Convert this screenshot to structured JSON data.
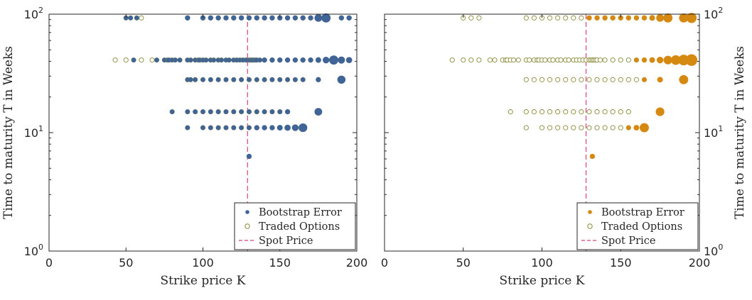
{
  "chart_data": [
    {
      "type": "scatter",
      "xlabel": "Strike price K",
      "ylabel": "Time to maturity T in Weeks",
      "xlim": [
        0,
        200
      ],
      "ylim": [
        1,
        100
      ],
      "yscale": "log",
      "xticks": [
        0,
        50,
        100,
        150,
        200
      ],
      "yticks": [
        {
          "v": 1,
          "b": "10",
          "e": "0"
        },
        {
          "v": 10,
          "b": "10",
          "e": "1"
        },
        {
          "v": 100,
          "b": "10",
          "e": "2"
        }
      ],
      "ylabel_side": "left",
      "grid": false,
      "legend_position": "bottom-right",
      "spot_price": 129,
      "legend": {
        "bootstrap": "Bootstrap Error",
        "traded": "Traded Options",
        "spot": "Spot Price"
      },
      "colors": {
        "bootstrap": "#3f6495",
        "traded": "#8a8a3a",
        "spot": "#d9417e"
      },
      "series": [
        {
          "T": 93,
          "K": [
            50,
            53,
            57,
            60,
            90,
            100,
            105,
            110,
            115,
            120,
            125,
            130,
            135,
            140,
            145,
            150,
            155,
            160,
            165,
            170,
            175,
            180,
            190,
            195
          ],
          "err": [
            0.3,
            0.3,
            0.3,
            0,
            0.35,
            0.35,
            0.35,
            0.35,
            0.35,
            0.35,
            0.35,
            0.35,
            0.35,
            0.35,
            0.35,
            0.35,
            0.35,
            0.35,
            0.35,
            0.35,
            0.6,
            0.75,
            0.35,
            0.35
          ]
        },
        {
          "T": 41,
          "K": [
            43,
            50,
            55,
            60,
            67,
            70,
            75,
            77,
            78,
            80,
            82,
            85,
            90,
            92,
            95,
            97,
            98,
            100,
            102,
            105,
            107,
            110,
            112,
            115,
            117,
            120,
            122,
            124,
            126,
            128,
            130,
            131,
            132,
            133,
            134,
            135,
            137,
            140,
            145,
            150,
            155,
            160,
            165,
            170,
            175,
            180,
            185,
            190,
            195
          ],
          "err": [
            0,
            0,
            0.3,
            0,
            0,
            0.3,
            0.3,
            0.3,
            0.3,
            0.3,
            0.3,
            0.3,
            0.3,
            0.3,
            0.3,
            0.3,
            0.3,
            0.3,
            0.3,
            0.3,
            0.3,
            0.3,
            0.3,
            0.3,
            0.3,
            0.3,
            0.3,
            0.3,
            0.3,
            0.3,
            0.3,
            0.3,
            0.3,
            0.3,
            0.3,
            0.3,
            0.3,
            0.35,
            0.35,
            0.35,
            0.35,
            0.35,
            0.35,
            0.35,
            0.4,
            0.5,
            0.75,
            0.55,
            0.45
          ]
        },
        {
          "T": 28,
          "K": [
            90,
            92,
            95,
            100,
            105,
            110,
            115,
            120,
            125,
            130,
            135,
            140,
            145,
            150,
            155,
            160,
            165,
            175,
            190
          ],
          "err": [
            0.3,
            0.3,
            0.3,
            0.3,
            0.3,
            0.3,
            0.3,
            0.3,
            0.3,
            0.3,
            0.3,
            0.3,
            0.3,
            0.3,
            0.3,
            0.3,
            0.3,
            0.35,
            0.65
          ]
        },
        {
          "T": 15,
          "K": [
            80,
            90,
            95,
            100,
            105,
            110,
            115,
            120,
            125,
            130,
            135,
            140,
            145,
            150,
            155,
            175
          ],
          "err": [
            0.3,
            0.3,
            0.3,
            0.3,
            0.3,
            0.3,
            0.3,
            0.3,
            0.3,
            0.3,
            0.3,
            0.3,
            0.3,
            0.3,
            0.35,
            0.6
          ]
        },
        {
          "T": 11,
          "K": [
            90,
            100,
            105,
            110,
            115,
            120,
            125,
            130,
            135,
            140,
            145,
            150,
            155,
            160,
            165
          ],
          "err": [
            0.3,
            0.3,
            0.3,
            0.3,
            0.3,
            0.3,
            0.3,
            0.3,
            0.35,
            0.35,
            0.35,
            0.4,
            0.45,
            0.5,
            0.7
          ]
        },
        {
          "T": 6.3,
          "K": [
            130
          ],
          "err": [
            0.35
          ]
        }
      ]
    },
    {
      "type": "scatter",
      "xlabel": "Strike price K",
      "ylabel": "Time to maturity T in Weeks",
      "xlim": [
        0,
        200
      ],
      "ylim": [
        1,
        100
      ],
      "yscale": "log",
      "xticks": [
        0,
        50,
        100,
        150,
        200
      ],
      "yticks": [
        {
          "v": 1,
          "b": "10",
          "e": "0"
        },
        {
          "v": 10,
          "b": "10",
          "e": "1"
        },
        {
          "v": 100,
          "b": "10",
          "e": "2"
        }
      ],
      "ylabel_side": "right",
      "grid": false,
      "legend_position": "bottom-right",
      "spot_price": 128,
      "legend": {
        "bootstrap": "Bootstrap Error",
        "traded": "Traded Options",
        "spot": "Spot Price"
      },
      "colors": {
        "bootstrap": "#d68910",
        "traded": "#8a8a3a",
        "spot": "#d9417e"
      },
      "series": [
        {
          "T": 93,
          "K": [
            50,
            55,
            60,
            90,
            95,
            100,
            105,
            110,
            115,
            120,
            125,
            130,
            135,
            140,
            145,
            150,
            155,
            160,
            165,
            170,
            175,
            180,
            190,
            195
          ],
          "err": [
            0,
            0,
            0,
            0,
            0,
            0,
            0,
            0,
            0,
            0,
            0,
            0.35,
            0.35,
            0.35,
            0.35,
            0.35,
            0.35,
            0.35,
            0.35,
            0.4,
            0.6,
            0.75,
            0.75,
            0.85
          ]
        },
        {
          "T": 41,
          "K": [
            43,
            50,
            55,
            60,
            67,
            70,
            75,
            77,
            78,
            80,
            82,
            85,
            90,
            92,
            95,
            97,
            98,
            100,
            102,
            105,
            107,
            110,
            112,
            115,
            117,
            120,
            122,
            124,
            126,
            128,
            130,
            131,
            132,
            133,
            134,
            135,
            137,
            140,
            145,
            150,
            155,
            160,
            165,
            170,
            175,
            180,
            185,
            190,
            195
          ],
          "err": [
            0,
            0,
            0,
            0,
            0,
            0,
            0,
            0,
            0,
            0,
            0,
            0,
            0,
            0,
            0,
            0,
            0,
            0,
            0,
            0,
            0,
            0,
            0,
            0,
            0,
            0,
            0,
            0,
            0,
            0,
            0,
            0,
            0,
            0,
            0,
            0,
            0,
            0,
            0,
            0,
            0,
            0.3,
            0.35,
            0.4,
            0.5,
            0.7,
            0.8,
            0.9,
            1.0
          ]
        },
        {
          "T": 28,
          "K": [
            90,
            95,
            100,
            105,
            110,
            115,
            120,
            125,
            130,
            135,
            140,
            145,
            150,
            155,
            160,
            165,
            175,
            190
          ],
          "err": [
            0,
            0,
            0,
            0,
            0,
            0,
            0,
            0,
            0,
            0,
            0,
            0,
            0,
            0,
            0,
            0.3,
            0.4,
            0.75
          ]
        },
        {
          "T": 15,
          "K": [
            80,
            90,
            95,
            100,
            105,
            110,
            115,
            120,
            125,
            130,
            135,
            140,
            145,
            150,
            155,
            175
          ],
          "err": [
            0,
            0,
            0,
            0,
            0,
            0,
            0,
            0,
            0,
            0,
            0,
            0,
            0,
            0,
            0,
            0.7
          ]
        },
        {
          "T": 11,
          "K": [
            90,
            100,
            105,
            110,
            115,
            120,
            125,
            130,
            135,
            140,
            145,
            150,
            155,
            160,
            165
          ],
          "err": [
            0,
            0,
            0,
            0,
            0,
            0,
            0,
            0,
            0,
            0,
            0,
            0,
            0.3,
            0.4,
            0.75
          ]
        },
        {
          "T": 6.3,
          "K": [
            132
          ],
          "err": [
            0.35
          ]
        }
      ]
    }
  ]
}
